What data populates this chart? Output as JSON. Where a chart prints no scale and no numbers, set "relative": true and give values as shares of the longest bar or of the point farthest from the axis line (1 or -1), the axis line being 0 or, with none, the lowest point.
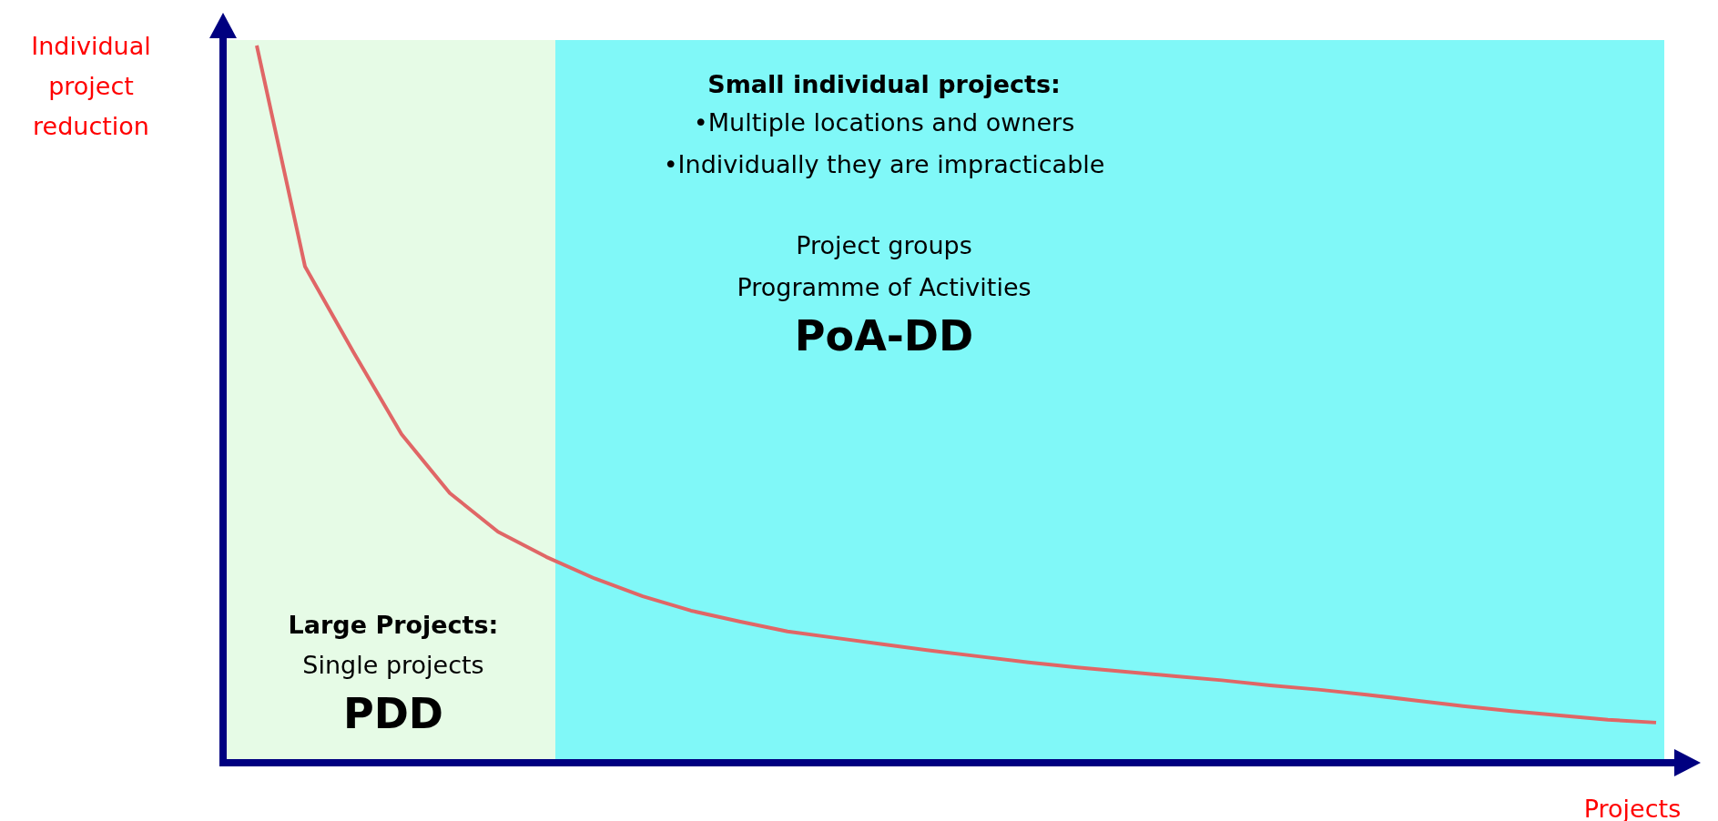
{
  "chart_data": {
    "type": "line",
    "relative": true,
    "grid": false,
    "marker": "none",
    "line_style": "solid",
    "xlabel": "Projects",
    "ylabel": "Individual\nproject\nreduction",
    "categories": [
      null,
      null,
      null,
      null,
      null,
      null,
      null,
      null,
      null,
      null,
      null,
      null,
      null,
      null,
      null,
      null,
      null,
      null,
      null,
      null,
      null,
      null,
      null,
      null,
      null,
      null,
      null,
      null,
      null,
      null
    ],
    "series": [
      {
        "color": "#e06666",
        "values": [
          1.0,
          0.692,
          0.573,
          0.458,
          0.376,
          0.322,
          0.287,
          0.257,
          0.232,
          0.212,
          0.197,
          0.183,
          0.174,
          0.165,
          0.156,
          0.148,
          0.14,
          0.133,
          0.127,
          0.121,
          0.115,
          0.108,
          0.102,
          0.095,
          0.087,
          0.079,
          0.072,
          0.066,
          0.06,
          0.056
        ]
      }
    ],
    "annotations": [
      "Small individual projects:",
      "•Multiple locations and owners",
      "•Individually they are impracticable",
      "Project groups",
      "Programme of Activities",
      "PoA-DD",
      "Large Projects:",
      "Single projects",
      "PDD"
    ]
  }
}
